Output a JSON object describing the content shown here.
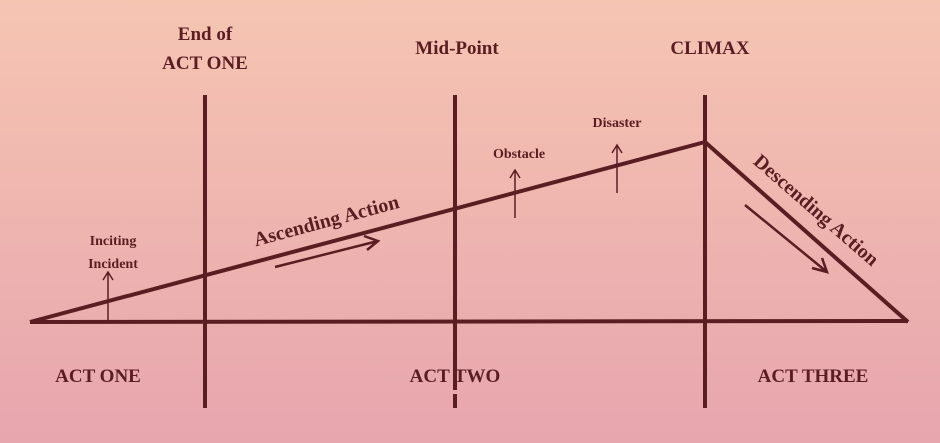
{
  "markers": [
    {
      "label": [
        "End of",
        "ACT ONE"
      ]
    },
    {
      "label": [
        "Mid-Point"
      ]
    },
    {
      "label": [
        "CLIMAX"
      ]
    }
  ],
  "events": [
    {
      "label": [
        "Inciting",
        "Incident"
      ]
    },
    {
      "label": [
        "Obstacle"
      ]
    },
    {
      "label": [
        "Disaster"
      ]
    }
  ],
  "actions": [
    "Ascending Action",
    "Descending Action"
  ],
  "acts": [
    "ACT ONE",
    "ACT TWO",
    "ACT THREE"
  ]
}
